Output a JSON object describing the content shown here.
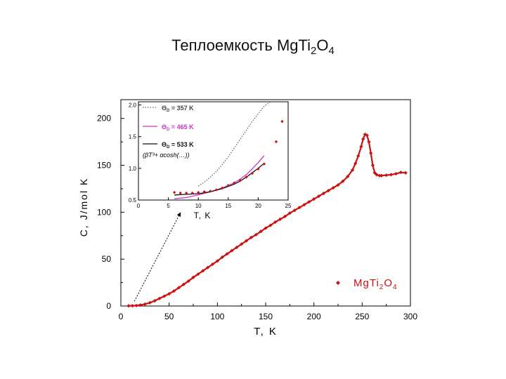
{
  "slide": {
    "title_main": "Теплоемкость MgTi",
    "title_sub1": "2",
    "title_mid": "O",
    "title_sub2": "4"
  },
  "chart_data": [
    {
      "type": "scatter",
      "title": "",
      "xlabel": "T, K",
      "ylabel": "C, J/mol K",
      "ylabel_subscript": "p",
      "xlim": [
        0,
        300
      ],
      "ylim": [
        0,
        220
      ],
      "xticks": [
        0,
        50,
        100,
        150,
        200,
        250,
        300
      ],
      "yticks": [
        0,
        50,
        100,
        150,
        200
      ],
      "grid": false,
      "legend_position": "bottom-right",
      "colors": {
        "series": "#cc1111",
        "axis": "#000000"
      },
      "series": [
        {
          "name": "MgTi2O4",
          "name_parts": [
            "MgTi",
            "2",
            "O",
            "4"
          ],
          "marker": "diamond",
          "x": [
            8,
            12,
            16,
            20,
            25,
            30,
            35,
            40,
            45,
            50,
            55,
            60,
            65,
            70,
            75,
            80,
            85,
            90,
            95,
            100,
            105,
            110,
            115,
            120,
            125,
            130,
            135,
            140,
            145,
            150,
            155,
            160,
            165,
            170,
            175,
            180,
            185,
            190,
            195,
            200,
            205,
            210,
            215,
            220,
            225,
            230,
            235,
            240,
            243,
            246,
            249,
            251,
            253,
            255,
            257,
            259,
            261,
            263,
            265,
            268,
            270,
            275,
            280,
            285,
            290,
            295
          ],
          "y": [
            0.2,
            0.3,
            0.5,
            1,
            2,
            3.5,
            5.5,
            8,
            10.5,
            13,
            16,
            19.5,
            23,
            26.5,
            30.5,
            34,
            37.5,
            41,
            44.5,
            48,
            52,
            55.5,
            59,
            62.5,
            66,
            69.5,
            73,
            76,
            79.5,
            83,
            86,
            89.5,
            92.5,
            95.5,
            99,
            102,
            105,
            108,
            111,
            114,
            117,
            120,
            123,
            126,
            129,
            133,
            138,
            145,
            152,
            160,
            170,
            178,
            183,
            182,
            175,
            163,
            150,
            142,
            140,
            139,
            139,
            139.5,
            140,
            141,
            142.5,
            142
          ]
        }
      ],
      "arrow": {
        "from": [
          14,
          5
        ],
        "to": [
          62,
          100
        ]
      }
    },
    {
      "type": "line",
      "role": "inset",
      "xlabel": "T, K",
      "xlim": [
        0,
        25
      ],
      "ylim": [
        0.5,
        2.05
      ],
      "xticks": [
        0,
        5,
        10,
        15,
        20,
        25
      ],
      "yticks": [
        0.5,
        1.0,
        1.5,
        2.0
      ],
      "ytick_labels": [
        "0.5",
        "1.0",
        "1.5",
        "2.0"
      ],
      "grid": false,
      "legend_position": "top-left",
      "fit_expression": "(βT³+ αcosh(…))",
      "series": [
        {
          "name": "Θ = 357 K",
          "name_sub": "D",
          "style": "dotted",
          "color": "#444444",
          "x": [
            10,
            11,
            12,
            13,
            14,
            15,
            16,
            17,
            18,
            19,
            20,
            21,
            22
          ],
          "y": [
            0.72,
            0.78,
            0.86,
            0.95,
            1.06,
            1.18,
            1.32,
            1.46,
            1.6,
            1.74,
            1.86,
            1.98,
            2.07
          ]
        },
        {
          "name": "Θ = 465 K",
          "name_sub": "D",
          "style": "solid",
          "color": "#cc33cc",
          "x": [
            6,
            8,
            10,
            12,
            14,
            16,
            17,
            18,
            19,
            20,
            21
          ],
          "y": [
            0.52,
            0.54,
            0.58,
            0.63,
            0.69,
            0.77,
            0.83,
            0.9,
            0.99,
            1.09,
            1.2
          ]
        },
        {
          "name": "Θ = 533 K",
          "name_sub": "D",
          "style": "solid",
          "color": "#111111",
          "x": [
            6,
            8,
            10,
            12,
            14,
            16,
            17,
            18,
            19,
            20,
            21
          ],
          "y": [
            0.58,
            0.59,
            0.6,
            0.63,
            0.68,
            0.75,
            0.8,
            0.86,
            0.93,
            1.0,
            1.08
          ]
        },
        {
          "name": "data",
          "style": "markers",
          "color": "#cc1111",
          "x": [
            6,
            7,
            8,
            9,
            10,
            11,
            12,
            13,
            14,
            15,
            16,
            17,
            18,
            19,
            20,
            21,
            23,
            24
          ],
          "y": [
            0.62,
            0.61,
            0.61,
            0.61,
            0.62,
            0.63,
            0.64,
            0.66,
            0.69,
            0.73,
            0.77,
            0.81,
            0.86,
            0.92,
            0.99,
            1.07,
            1.42,
            1.74
          ]
        }
      ]
    }
  ]
}
